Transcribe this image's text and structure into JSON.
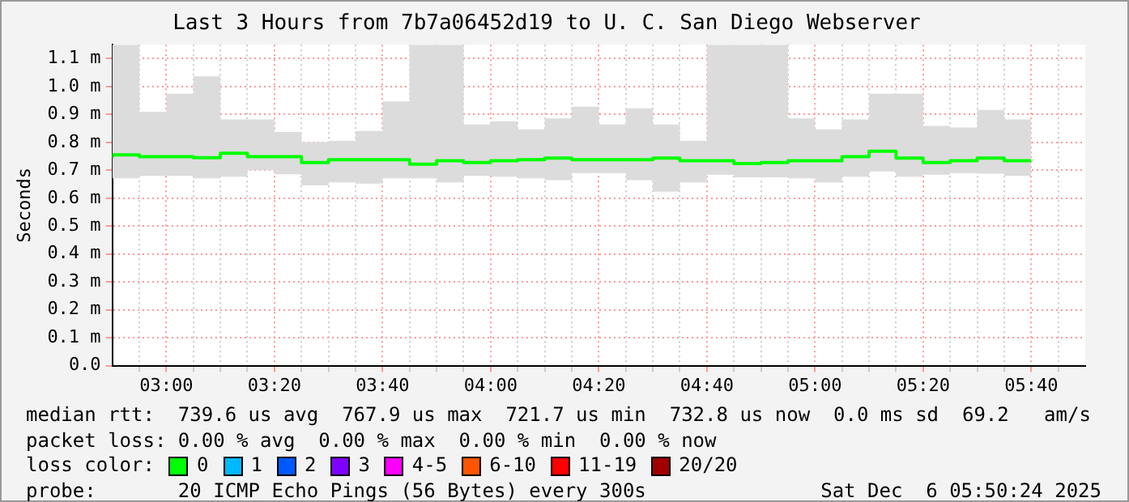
{
  "chart_data": {
    "type": "step",
    "title": "Last 3 Hours from 7b7a06452d19 to U. C. San Diego Webserver",
    "ylabel": "Seconds",
    "x": [
      2.8333,
      2.9167,
      3,
      3.0833,
      3.1667,
      3.25,
      3.3333,
      3.4167,
      3.5,
      3.5833,
      3.6667,
      3.75,
      3.8333,
      3.9167,
      4,
      4.0833,
      4.1667,
      4.25,
      4.3333,
      4.4167,
      4.5,
      4.5833,
      4.6667,
      4.75,
      4.8333,
      4.9167,
      5,
      5.0833,
      5.1667,
      5.25,
      5.3333,
      5.4167,
      5.5,
      5.5833,
      5.6667
    ],
    "xlim": [
      2.8333,
      5.8333
    ],
    "xticks": [
      {
        "value": 2.9167,
        "label": null
      },
      {
        "value": 3,
        "label": "03:00"
      },
      {
        "value": 3.0833,
        "label": null
      },
      {
        "value": 3.1667,
        "label": null
      },
      {
        "value": 3.25,
        "label": null
      },
      {
        "value": 3.3333,
        "label": "03:20"
      },
      {
        "value": 3.4167,
        "label": null
      },
      {
        "value": 3.5,
        "label": null
      },
      {
        "value": 3.5833,
        "label": null
      },
      {
        "value": 3.6667,
        "label": "03:40"
      },
      {
        "value": 3.75,
        "label": null
      },
      {
        "value": 3.8333,
        "label": null
      },
      {
        "value": 3.9167,
        "label": null
      },
      {
        "value": 4,
        "label": "04:00"
      },
      {
        "value": 4.0833,
        "label": null
      },
      {
        "value": 4.1667,
        "label": null
      },
      {
        "value": 4.25,
        "label": null
      },
      {
        "value": 4.3333,
        "label": "04:20"
      },
      {
        "value": 4.4167,
        "label": null
      },
      {
        "value": 4.5,
        "label": null
      },
      {
        "value": 4.5833,
        "label": null
      },
      {
        "value": 4.6667,
        "label": "04:40"
      },
      {
        "value": 4.75,
        "label": null
      },
      {
        "value": 4.8333,
        "label": null
      },
      {
        "value": 4.9167,
        "label": null
      },
      {
        "value": 5,
        "label": "05:00"
      },
      {
        "value": 5.0833,
        "label": null
      },
      {
        "value": 5.1667,
        "label": null
      },
      {
        "value": 5.25,
        "label": null
      },
      {
        "value": 5.3333,
        "label": "05:20"
      },
      {
        "value": 5.4167,
        "label": null
      },
      {
        "value": 5.5,
        "label": null
      },
      {
        "value": 5.5833,
        "label": null
      },
      {
        "value": 5.6667,
        "label": "05:40"
      },
      {
        "value": 5.75,
        "label": null
      }
    ],
    "ylim": [
      0,
      1.15
    ],
    "yticks": [
      {
        "value": 0,
        "label": "0.0"
      },
      {
        "value": 0.1,
        "label": "0.1 m"
      },
      {
        "value": 0.2,
        "label": "0.2 m"
      },
      {
        "value": 0.3,
        "label": "0.3 m"
      },
      {
        "value": 0.4,
        "label": "0.4 m"
      },
      {
        "value": 0.5,
        "label": "0.5 m"
      },
      {
        "value": 0.6,
        "label": "0.6 m"
      },
      {
        "value": 0.7,
        "label": "0.7 m"
      },
      {
        "value": 0.8,
        "label": "0.8 m"
      },
      {
        "value": 0.9,
        "label": "0.9 m"
      },
      {
        "value": 1.0,
        "label": "1.0 m"
      },
      {
        "value": 1.1,
        "label": "1.1 m"
      }
    ],
    "grid": true,
    "legend": "bottom",
    "legend_title": "loss color:",
    "series": [
      {
        "name": "0",
        "color": "#00ff00",
        "values": [
          0.745,
          0.755,
          0.749,
          0.749,
          0.745,
          0.761,
          0.749,
          0.749,
          0.728,
          0.738,
          0.738,
          0.738,
          0.722,
          0.734,
          0.728,
          0.734,
          0.738,
          0.744,
          0.738,
          0.738,
          0.738,
          0.744,
          0.734,
          0.734,
          0.724,
          0.728,
          0.734,
          0.734,
          0.749,
          0.768,
          0.744,
          0.728,
          0.734,
          0.744,
          0.734
        ],
        "lower": [
          0.665,
          0.671,
          0.68,
          0.68,
          0.671,
          0.677,
          0.7,
          0.686,
          0.646,
          0.657,
          0.652,
          0.671,
          0.671,
          0.657,
          0.68,
          0.677,
          0.671,
          0.665,
          0.69,
          0.69,
          0.665,
          0.623,
          0.657,
          0.684,
          0.675,
          0.675,
          0.671,
          0.657,
          0.677,
          0.696,
          0.677,
          0.684,
          0.69,
          0.688,
          0.68
        ],
        "upper": [
          1.15,
          1.15,
          0.91,
          0.974,
          1.037,
          0.882,
          0.882,
          0.837,
          0.801,
          0.805,
          0.841,
          0.947,
          1.15,
          1.15,
          0.864,
          0.876,
          0.847,
          0.886,
          0.928,
          0.864,
          0.922,
          0.864,
          0.805,
          1.15,
          1.15,
          1.15,
          0.886,
          0.847,
          0.882,
          0.974,
          0.974,
          0.859,
          0.853,
          0.916,
          0.882
        ]
      },
      {
        "name": "1",
        "color": "#00b8ff",
        "values": [
          null,
          null,
          null,
          null,
          null,
          null,
          null,
          null,
          null,
          null,
          null,
          null,
          null,
          null,
          null,
          null,
          null,
          null,
          null,
          null,
          null,
          null,
          null,
          null,
          null,
          null,
          null,
          null,
          null,
          null,
          null,
          null,
          null,
          null,
          null
        ]
      },
      {
        "name": "2",
        "color": "#0059ff",
        "values": [
          null,
          null,
          null,
          null,
          null,
          null,
          null,
          null,
          null,
          null,
          null,
          null,
          null,
          null,
          null,
          null,
          null,
          null,
          null,
          null,
          null,
          null,
          null,
          null,
          null,
          null,
          null,
          null,
          null,
          null,
          null,
          null,
          null,
          null,
          null
        ]
      },
      {
        "name": "3",
        "color": "#7e00ff",
        "values": [
          null,
          null,
          null,
          null,
          null,
          null,
          null,
          null,
          null,
          null,
          null,
          null,
          null,
          null,
          null,
          null,
          null,
          null,
          null,
          null,
          null,
          null,
          null,
          null,
          null,
          null,
          null,
          null,
          null,
          null,
          null,
          null,
          null,
          null,
          null
        ]
      },
      {
        "name": "4-5",
        "color": "#ff00ff",
        "values": [
          null,
          null,
          null,
          null,
          null,
          null,
          null,
          null,
          null,
          null,
          null,
          null,
          null,
          null,
          null,
          null,
          null,
          null,
          null,
          null,
          null,
          null,
          null,
          null,
          null,
          null,
          null,
          null,
          null,
          null,
          null,
          null,
          null,
          null,
          null
        ]
      },
      {
        "name": "6-10",
        "color": "#ff5500",
        "values": [
          null,
          null,
          null,
          null,
          null,
          null,
          null,
          null,
          null,
          null,
          null,
          null,
          null,
          null,
          null,
          null,
          null,
          null,
          null,
          null,
          null,
          null,
          null,
          null,
          null,
          null,
          null,
          null,
          null,
          null,
          null,
          null,
          null,
          null,
          null
        ]
      },
      {
        "name": "11-19",
        "color": "#ff0000",
        "values": [
          null,
          null,
          null,
          null,
          null,
          null,
          null,
          null,
          null,
          null,
          null,
          null,
          null,
          null,
          null,
          null,
          null,
          null,
          null,
          null,
          null,
          null,
          null,
          null,
          null,
          null,
          null,
          null,
          null,
          null,
          null,
          null,
          null,
          null,
          null
        ]
      },
      {
        "name": "20/20",
        "color": "#a10000",
        "values": [
          null,
          null,
          null,
          null,
          null,
          null,
          null,
          null,
          null,
          null,
          null,
          null,
          null,
          null,
          null,
          null,
          null,
          null,
          null,
          null,
          null,
          null,
          null,
          null,
          null,
          null,
          null,
          null,
          null,
          null,
          null,
          null,
          null,
          null,
          null
        ]
      }
    ],
    "annotations": [
      "median rtt:  739.6 us avg  767.9 us max  721.7 us min  732.8 us now  0.0 ms sd  69.2   am/s",
      "packet loss: 0.00 % avg  0.00 % max  0.00 % min  0.00 % now",
      "probe:       20 ICMP Echo Pings (56 Bytes) every 300s",
      "Sat Dec  6 05:50:24 2025"
    ]
  }
}
